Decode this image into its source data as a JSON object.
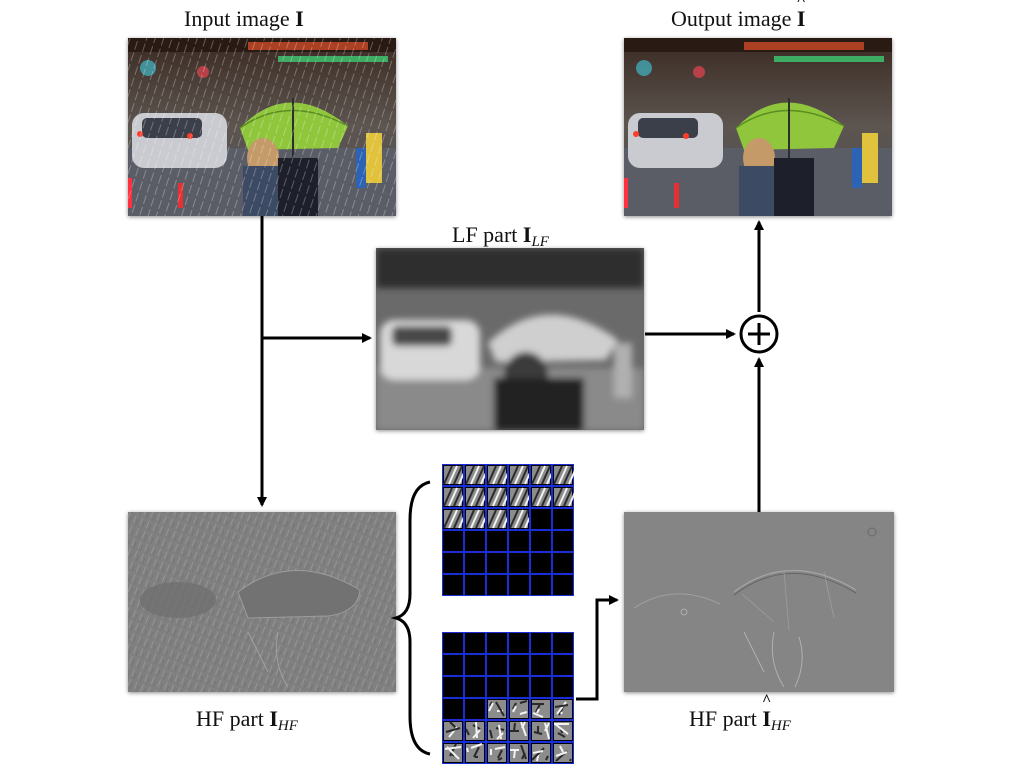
{
  "labels": {
    "input_prefix": "Input image",
    "input_symbol": "I",
    "output_prefix": "Output image",
    "output_symbol": "I",
    "lf_prefix": "LF part",
    "lf_symbol": "I",
    "lf_sub": "LF",
    "hf_in_prefix": "HF part",
    "hf_in_symbol": "I",
    "hf_in_sub": "HF",
    "hf_out_prefix": "HF part",
    "hf_out_symbol": "I",
    "hf_out_sub": "HF"
  },
  "colors": {
    "umbrella": "#8fc63c",
    "dictionary_grid": "#1a2ed8",
    "arrow": "#000000"
  },
  "icons": {
    "sum": "circled-plus-icon"
  },
  "dictionaries": {
    "rain_atoms_filled": 16,
    "detail_atoms_filled": 16,
    "rows": 6,
    "cols": 6
  }
}
